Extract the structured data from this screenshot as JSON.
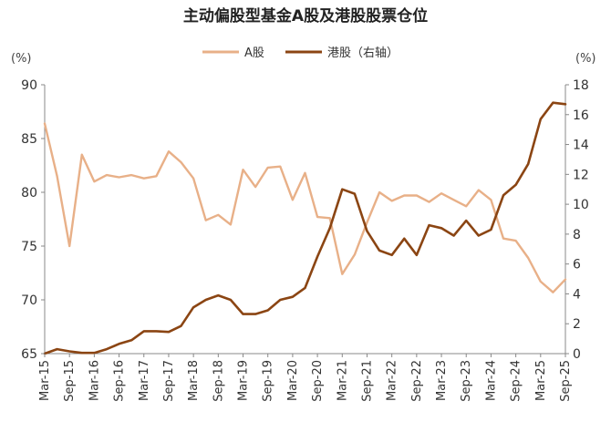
{
  "chart_data": {
    "type": "line",
    "title": "主动偏股型基金A股及港股股票仓位",
    "left_unit": "(%)",
    "right_unit": "(%)",
    "legend_position": "top-center",
    "grid": false,
    "x_tick_labels": [
      "Mar-15",
      "Sep-15",
      "Mar-16",
      "Sep-16",
      "Mar-17",
      "Sep-17",
      "Mar-18",
      "Sep-18",
      "Mar-19",
      "Sep-19",
      "Mar-20",
      "Sep-20",
      "Mar-21",
      "Sep-21",
      "Mar-22",
      "Sep-22",
      "Mar-23",
      "Sep-23",
      "Mar-24",
      "Sep-24",
      "Mar-25",
      "Sep-25"
    ],
    "y_left": {
      "min": 65,
      "max": 90,
      "ticks": [
        65,
        70,
        75,
        80,
        85,
        90
      ]
    },
    "y_right": {
      "min": 0,
      "max": 18,
      "ticks": [
        0,
        2,
        4,
        6,
        8,
        10,
        12,
        14,
        16,
        18
      ]
    },
    "series": [
      {
        "name": "A股",
        "axis": "left",
        "color": "#E8B088",
        "values": [
          86.4,
          81.5,
          75.0,
          83.5,
          81.0,
          81.6,
          81.4,
          81.6,
          81.3,
          81.5,
          83.8,
          82.8,
          81.3,
          77.4,
          77.9,
          77.0,
          82.1,
          80.5,
          82.3,
          82.4,
          79.3,
          81.8,
          77.7,
          77.6,
          72.4,
          74.2,
          77.2,
          80.0,
          79.2,
          79.7,
          79.7,
          79.1,
          79.9,
          79.3,
          78.7,
          80.2,
          79.3,
          75.7,
          75.5,
          73.9,
          71.7,
          70.7,
          71.9
        ]
      },
      {
        "name": "港股（右轴）",
        "axis": "right",
        "color": "#8B4513",
        "values": [
          0.0,
          0.3,
          0.15,
          0.05,
          0.05,
          0.3,
          0.65,
          0.9,
          1.5,
          1.5,
          1.45,
          1.85,
          3.1,
          3.6,
          3.9,
          3.6,
          2.65,
          2.65,
          2.9,
          3.6,
          3.8,
          4.4,
          6.5,
          8.4,
          11.0,
          10.7,
          8.2,
          6.9,
          6.6,
          7.7,
          6.6,
          8.6,
          8.4,
          7.9,
          8.9,
          7.9,
          8.3,
          10.6,
          11.3,
          12.7,
          15.7,
          16.8,
          16.7
        ]
      }
    ]
  }
}
